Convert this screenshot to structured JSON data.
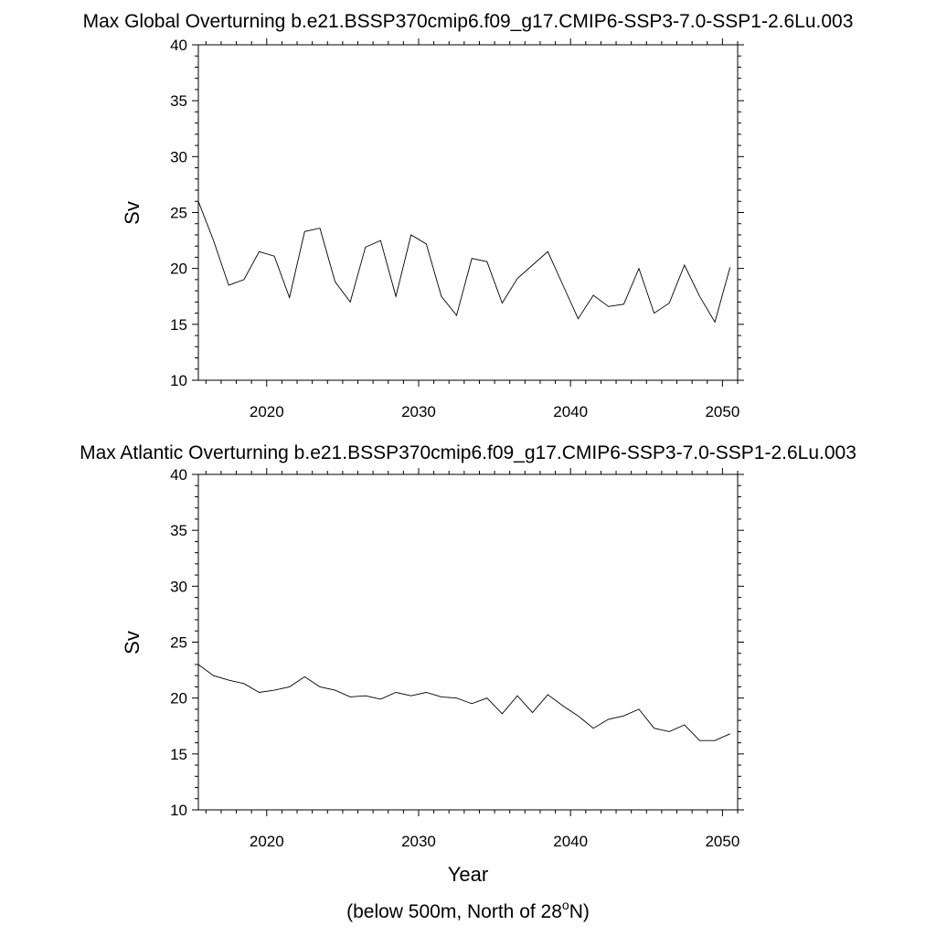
{
  "footnote": {
    "prefix": "(below 500m, North of 28",
    "superscript": "o",
    "suffix": "N)"
  },
  "chart_data": [
    {
      "type": "line",
      "title": "Max Global Overturning b.e21.BSSP370cmip6.f09_g17.CMIP6-SSP3-7.0-SSP1-2.6Lu.003",
      "xlabel": "",
      "ylabel": "Sv",
      "xlim": [
        2015.5,
        2051.0
      ],
      "ylim": [
        10,
        40
      ],
      "xticks": [
        2020,
        2030,
        2040,
        2050
      ],
      "yticks": [
        10,
        15,
        20,
        25,
        30,
        35,
        40
      ],
      "grid": false,
      "series": [
        {
          "x": [
            2015.5,
            2016.5,
            2017.5,
            2018.5,
            2019.5,
            2020.5,
            2021.5,
            2022.5,
            2023.5,
            2024.5,
            2025.5,
            2026.5,
            2027.5,
            2028.5,
            2029.5,
            2030.5,
            2031.5,
            2032.5,
            2033.5,
            2034.5,
            2035.5,
            2036.5,
            2037.5,
            2038.5,
            2039.5,
            2040.5,
            2041.5,
            2042.5,
            2043.5,
            2044.5,
            2045.5,
            2046.5,
            2047.5,
            2048.5,
            2049.5,
            2050.5
          ],
          "values": [
            26.0,
            22.5,
            18.5,
            19.0,
            21.5,
            21.1,
            17.4,
            23.3,
            23.6,
            18.8,
            17.0,
            21.9,
            22.5,
            17.5,
            23.0,
            22.2,
            17.5,
            15.8,
            20.9,
            20.6,
            16.9,
            19.1,
            20.3,
            21.5,
            18.5,
            15.5,
            17.6,
            16.6,
            16.8,
            20.0,
            16.0,
            16.9,
            20.3,
            17.5,
            15.2,
            20.1
          ]
        }
      ]
    },
    {
      "type": "line",
      "title": "Max Atlantic Overturning b.e21.BSSP370cmip6.f09_g17.CMIP6-SSP3-7.0-SSP1-2.6Lu.003",
      "xlabel": "Year",
      "ylabel": "Sv",
      "xlim": [
        2015.5,
        2051.0
      ],
      "ylim": [
        10,
        40
      ],
      "xticks": [
        2020,
        2030,
        2040,
        2050
      ],
      "yticks": [
        10,
        15,
        20,
        25,
        30,
        35,
        40
      ],
      "grid": false,
      "series": [
        {
          "x": [
            2015.5,
            2016.5,
            2017.5,
            2018.5,
            2019.5,
            2020.5,
            2021.5,
            2022.5,
            2023.5,
            2024.5,
            2025.5,
            2026.5,
            2027.5,
            2028.5,
            2029.5,
            2030.5,
            2031.5,
            2032.5,
            2033.5,
            2034.5,
            2035.5,
            2036.5,
            2037.5,
            2038.5,
            2039.5,
            2040.5,
            2041.5,
            2042.5,
            2043.5,
            2044.5,
            2045.5,
            2046.5,
            2047.5,
            2048.5,
            2049.5,
            2050.5
          ],
          "values": [
            23.0,
            22.0,
            21.6,
            21.3,
            20.5,
            20.7,
            21.0,
            21.9,
            21.0,
            20.7,
            20.1,
            20.2,
            19.9,
            20.5,
            20.2,
            20.5,
            20.1,
            20.0,
            19.5,
            20.0,
            18.6,
            20.2,
            18.7,
            20.3,
            19.3,
            18.4,
            17.3,
            18.1,
            18.4,
            19.0,
            17.3,
            17.0,
            17.6,
            16.2,
            16.2,
            16.8
          ]
        }
      ]
    }
  ]
}
